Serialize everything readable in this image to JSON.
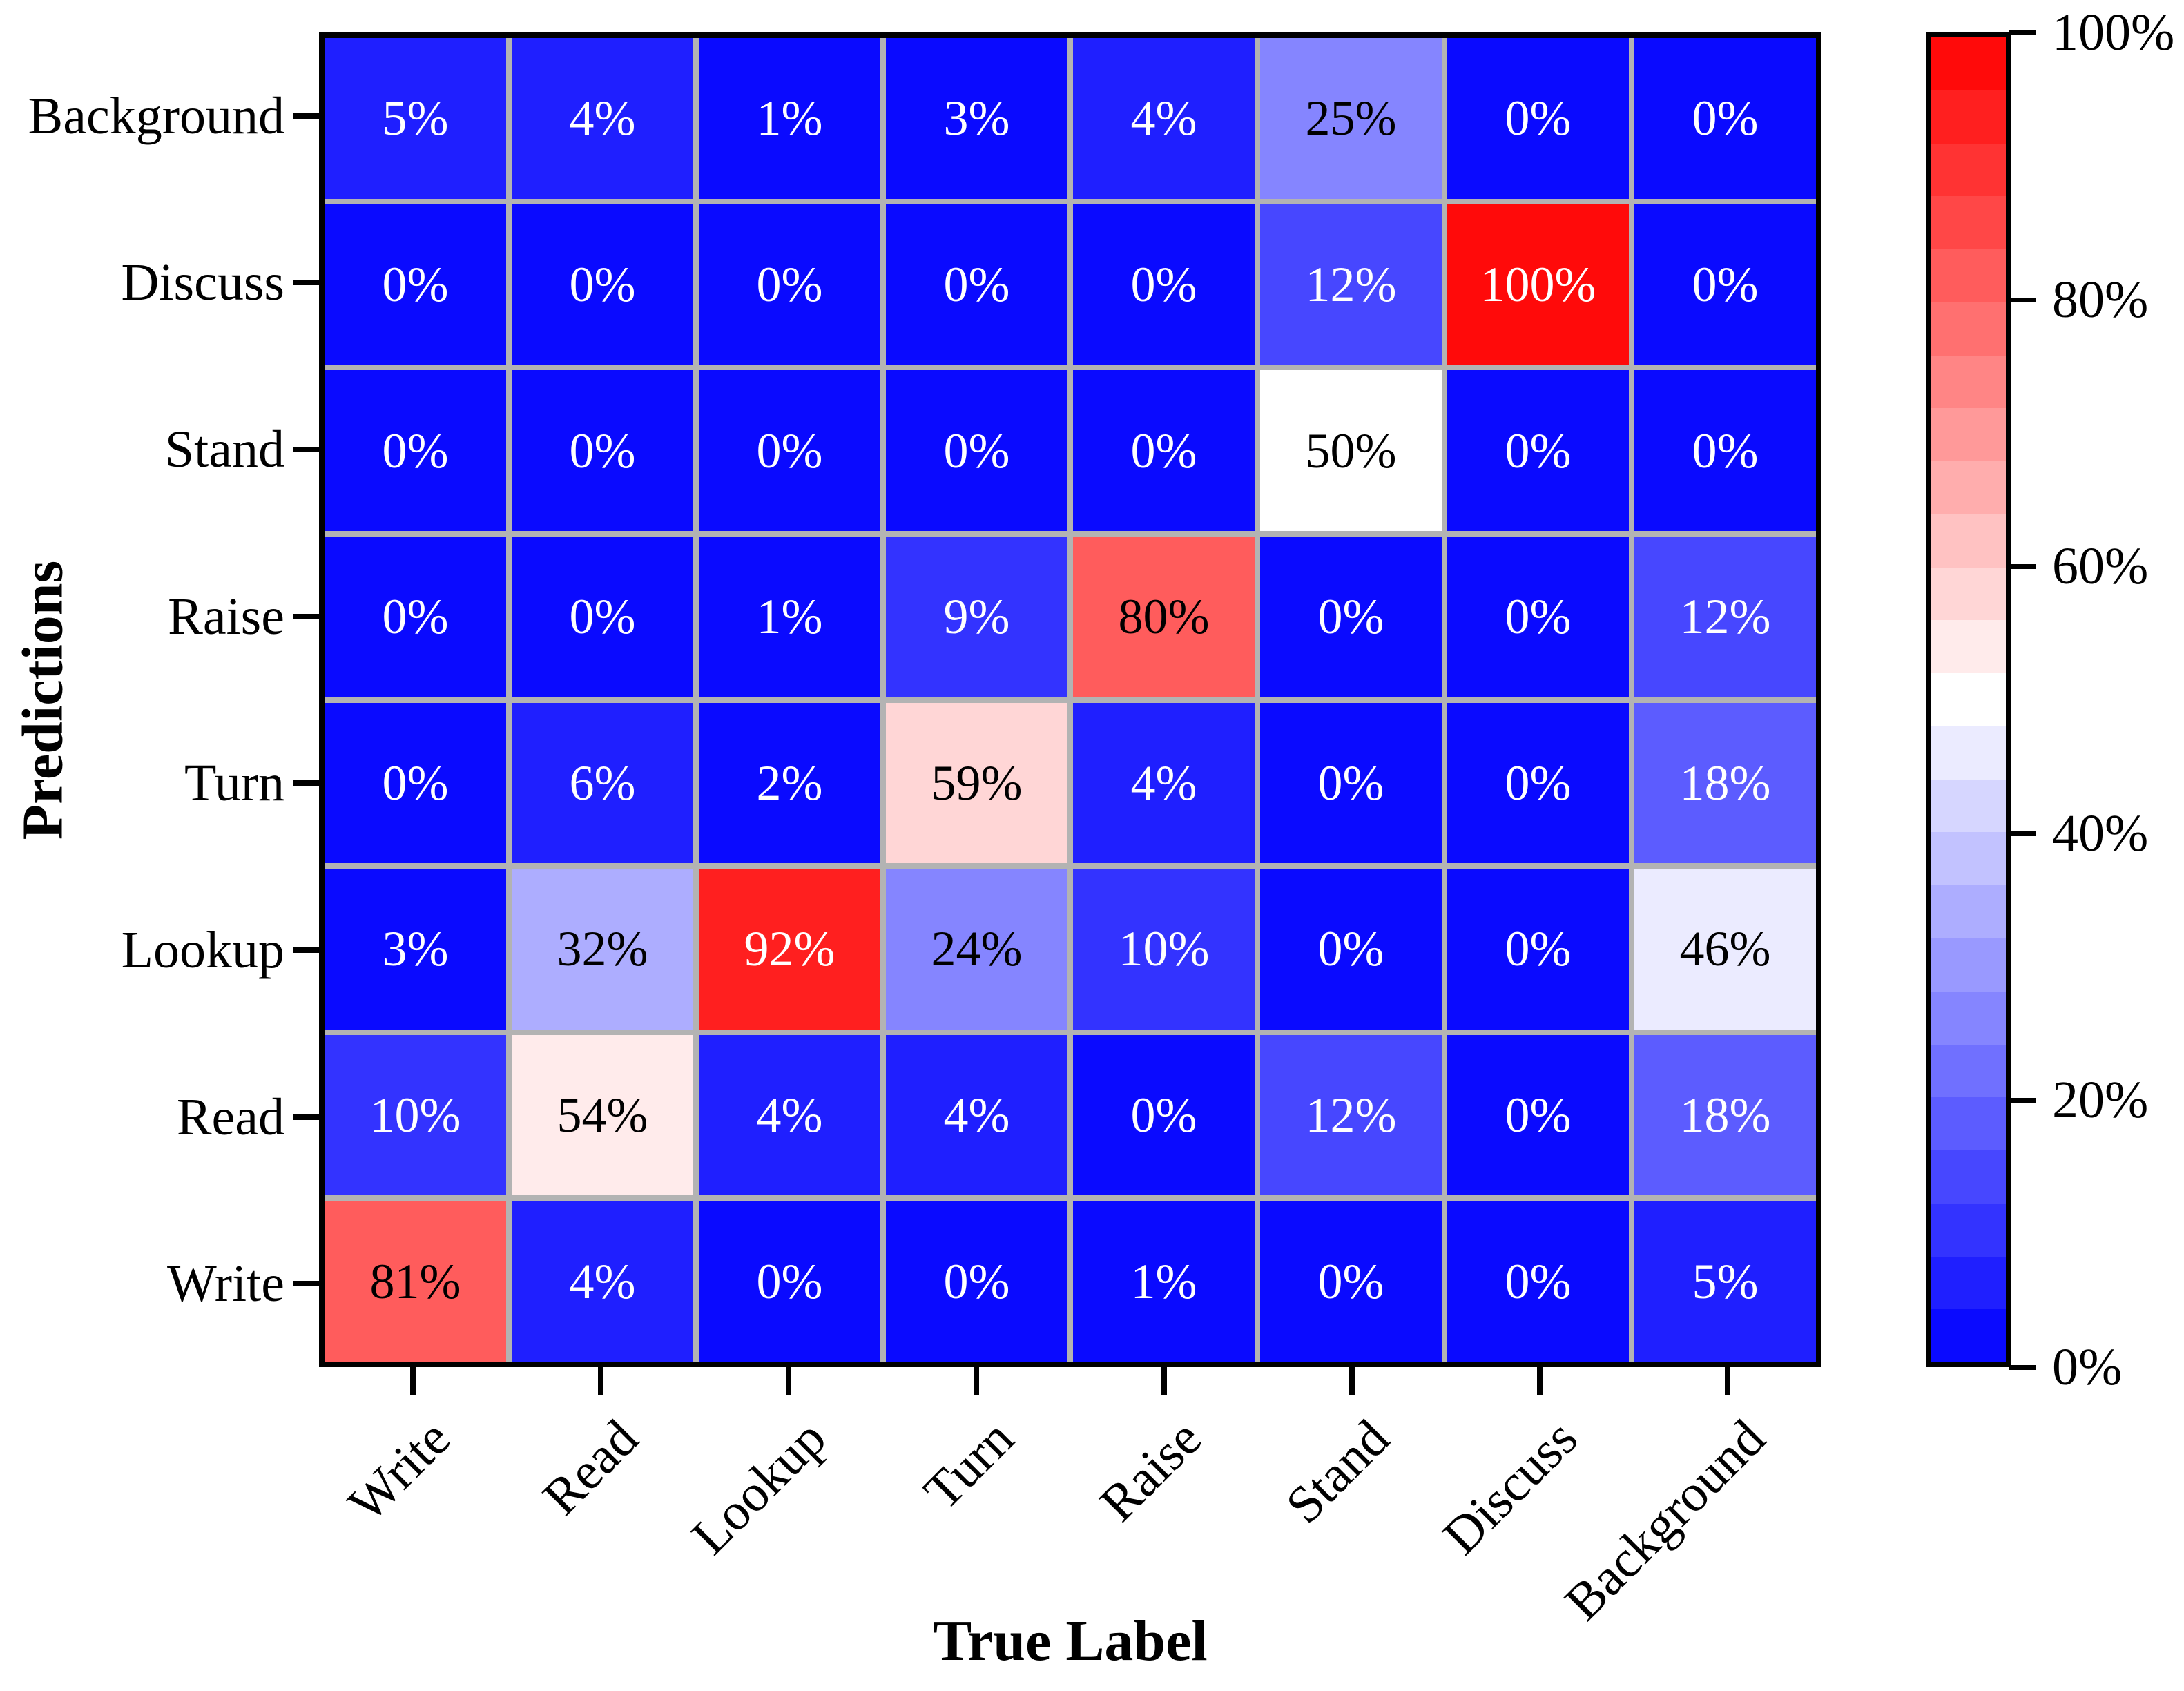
{
  "chart_data": {
    "type": "heatmap",
    "xlabel": "True Label",
    "ylabel": "Predictions",
    "x_categories": [
      "Write",
      "Read",
      "Lookup",
      "Turn",
      "Raise",
      "Stand",
      "Discuss",
      "Background"
    ],
    "y_categories": [
      "Background",
      "Discuss",
      "Stand",
      "Raise",
      "Turn",
      "Lookup",
      "Read",
      "Write"
    ],
    "values_percent": [
      [
        5,
        4,
        1,
        3,
        4,
        25,
        0,
        0
      ],
      [
        0,
        0,
        0,
        0,
        0,
        12,
        100,
        0
      ],
      [
        0,
        0,
        0,
        0,
        0,
        50,
        0,
        0
      ],
      [
        0,
        0,
        1,
        9,
        80,
        0,
        0,
        12
      ],
      [
        0,
        6,
        2,
        59,
        4,
        0,
        0,
        18
      ],
      [
        3,
        32,
        92,
        24,
        10,
        0,
        0,
        46
      ],
      [
        10,
        54,
        4,
        4,
        0,
        12,
        0,
        18
      ],
      [
        81,
        4,
        0,
        0,
        1,
        0,
        0,
        5
      ]
    ],
    "cell_label_suffix": "%",
    "value_range": [
      0,
      100
    ],
    "colormap": "bwr-discrete",
    "colormap_levels": 25,
    "colorbar_tick_values": [
      100,
      80,
      60,
      40,
      20,
      0
    ],
    "colorbar_tick_labels": [
      "100%",
      "80%",
      "60%",
      "40%",
      "20%",
      "0%"
    ],
    "legend_position": "right",
    "grid_on": true,
    "colors": {
      "min_blue": "#0a0aff",
      "mid_white": "#ffffff",
      "max_red": "#ff0a0a",
      "gridline": "#b3b3b3",
      "frame": "#000000"
    }
  }
}
